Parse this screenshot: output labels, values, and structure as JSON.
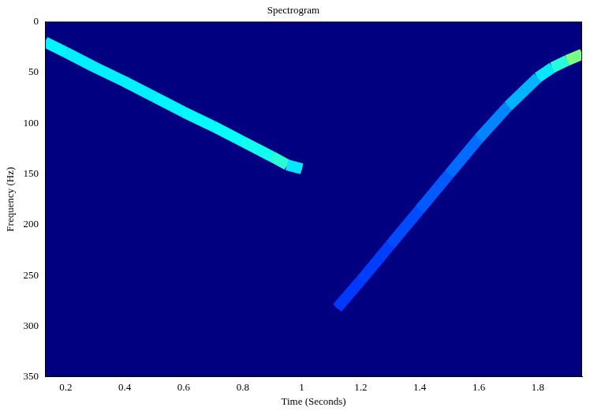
{
  "chart_data": {
    "type": "spectrogram",
    "title": "Spectrogram",
    "x_label": "Time (Seconds)",
    "y_label": "Frequency (Hz)",
    "xlim": [
      0.13,
      1.95
    ],
    "xticks": [
      0.2,
      0.4,
      0.6,
      0.8,
      1,
      1.2,
      1.4,
      1.6,
      1.8
    ],
    "ylim": [
      0,
      350
    ],
    "yticks": [
      0,
      50,
      100,
      150,
      200,
      250,
      300,
      350
    ],
    "grid": false,
    "ridges": [
      {
        "time": [
          0.13,
          0.2,
          0.3,
          0.4,
          0.5,
          0.6,
          0.7,
          0.8,
          0.9,
          0.95,
          1.0
        ],
        "frequency": [
          20,
          30,
          45,
          59,
          74,
          89,
          103,
          118,
          133,
          141,
          145
        ],
        "intensity": [
          0.62,
          0.6,
          0.6,
          0.6,
          0.6,
          0.62,
          0.62,
          0.64,
          0.66,
          0.72,
          0.45
        ]
      },
      {
        "time": [
          1.12,
          1.2,
          1.3,
          1.4,
          1.5,
          1.6,
          1.7,
          1.8,
          1.85,
          1.9,
          1.95
        ],
        "frequency": [
          282,
          255,
          220,
          185,
          150,
          115,
          83,
          55,
          45,
          38,
          32
        ],
        "intensity": [
          0.3,
          0.3,
          0.32,
          0.34,
          0.37,
          0.4,
          0.45,
          0.55,
          0.62,
          0.75,
          0.9
        ]
      }
    ]
  }
}
